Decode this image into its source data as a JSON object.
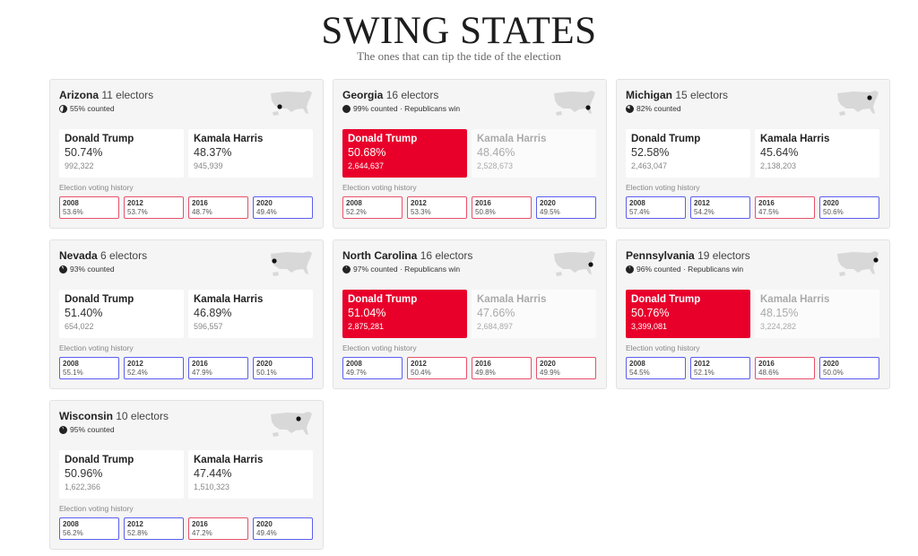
{
  "header": {
    "title": "SWING STATES",
    "subtitle": "The ones that can tip the tide of the election"
  },
  "history_label": "Election voting history",
  "colors": {
    "republican": "#e8002b",
    "republican_border": "#e8506a",
    "democrat_border": "#5a5ef0",
    "card_bg": "#f5f5f5"
  },
  "states": [
    {
      "name": "Arizona",
      "electors": "11 electors",
      "counted": "55% counted",
      "counted_pct": 55,
      "winner": null,
      "candidates": [
        {
          "name": "Donald Trump",
          "pct": "50.74%",
          "votes": "992,322"
        },
        {
          "name": "Kamala Harris",
          "pct": "48.37%",
          "votes": "945,939"
        }
      ],
      "history": [
        {
          "year": "2008",
          "value": "53.6%",
          "party": "R"
        },
        {
          "year": "2012",
          "value": "53.7%",
          "party": "R"
        },
        {
          "year": "2016",
          "value": "48.7%",
          "party": "R"
        },
        {
          "year": "2020",
          "value": "49.4%",
          "party": "D"
        }
      ]
    },
    {
      "name": "Georgia",
      "electors": "16 electors",
      "counted": "99% counted · Republicans win",
      "counted_pct": 99,
      "winner": 0,
      "candidates": [
        {
          "name": "Donald Trump",
          "pct": "50.68%",
          "votes": "2,644,637"
        },
        {
          "name": "Kamala Harris",
          "pct": "48.46%",
          "votes": "2,528,673"
        }
      ],
      "history": [
        {
          "year": "2008",
          "value": "52.2%",
          "party": "R"
        },
        {
          "year": "2012",
          "value": "53.3%",
          "party": "R"
        },
        {
          "year": "2016",
          "value": "50.8%",
          "party": "R"
        },
        {
          "year": "2020",
          "value": "49.5%",
          "party": "D"
        }
      ]
    },
    {
      "name": "Michigan",
      "electors": "15 electors",
      "counted": "82% counted",
      "counted_pct": 82,
      "winner": null,
      "candidates": [
        {
          "name": "Donald Trump",
          "pct": "52.58%",
          "votes": "2,463,047"
        },
        {
          "name": "Kamala Harris",
          "pct": "45.64%",
          "votes": "2,138,203"
        }
      ],
      "history": [
        {
          "year": "2008",
          "value": "57.4%",
          "party": "D"
        },
        {
          "year": "2012",
          "value": "54.2%",
          "party": "D"
        },
        {
          "year": "2016",
          "value": "47.5%",
          "party": "R"
        },
        {
          "year": "2020",
          "value": "50.6%",
          "party": "D"
        }
      ]
    },
    {
      "name": "Nevada",
      "electors": "6 electors",
      "counted": "93% counted",
      "counted_pct": 93,
      "winner": null,
      "candidates": [
        {
          "name": "Donald Trump",
          "pct": "51.40%",
          "votes": "654,022"
        },
        {
          "name": "Kamala Harris",
          "pct": "46.89%",
          "votes": "596,557"
        }
      ],
      "history": [
        {
          "year": "2008",
          "value": "55.1%",
          "party": "D"
        },
        {
          "year": "2012",
          "value": "52.4%",
          "party": "D"
        },
        {
          "year": "2016",
          "value": "47.9%",
          "party": "D"
        },
        {
          "year": "2020",
          "value": "50.1%",
          "party": "D"
        }
      ]
    },
    {
      "name": "North Carolina",
      "electors": "16 electors",
      "counted": "97% counted · Republicans win",
      "counted_pct": 97,
      "winner": 0,
      "candidates": [
        {
          "name": "Donald Trump",
          "pct": "51.04%",
          "votes": "2,875,281"
        },
        {
          "name": "Kamala Harris",
          "pct": "47.66%",
          "votes": "2,684,897"
        }
      ],
      "history": [
        {
          "year": "2008",
          "value": "49.7%",
          "party": "D"
        },
        {
          "year": "2012",
          "value": "50.4%",
          "party": "R"
        },
        {
          "year": "2016",
          "value": "49.8%",
          "party": "R"
        },
        {
          "year": "2020",
          "value": "49.9%",
          "party": "R"
        }
      ]
    },
    {
      "name": "Pennsylvania",
      "electors": "19 electors",
      "counted": "96% counted · Republicans win",
      "counted_pct": 96,
      "winner": 0,
      "candidates": [
        {
          "name": "Donald Trump",
          "pct": "50.76%",
          "votes": "3,399,081"
        },
        {
          "name": "Kamala Harris",
          "pct": "48.15%",
          "votes": "3,224,282"
        }
      ],
      "history": [
        {
          "year": "2008",
          "value": "54.5%",
          "party": "D"
        },
        {
          "year": "2012",
          "value": "52.1%",
          "party": "D"
        },
        {
          "year": "2016",
          "value": "48.6%",
          "party": "R"
        },
        {
          "year": "2020",
          "value": "50.0%",
          "party": "D"
        }
      ]
    },
    {
      "name": "Wisconsin",
      "electors": "10 electors",
      "counted": "95% counted",
      "counted_pct": 95,
      "winner": null,
      "candidates": [
        {
          "name": "Donald Trump",
          "pct": "50.96%",
          "votes": "1,622,366"
        },
        {
          "name": "Kamala Harris",
          "pct": "47.44%",
          "votes": "1,510,323"
        }
      ],
      "history": [
        {
          "year": "2008",
          "value": "56.2%",
          "party": "D"
        },
        {
          "year": "2012",
          "value": "52.8%",
          "party": "D"
        },
        {
          "year": "2016",
          "value": "47.2%",
          "party": "R"
        },
        {
          "year": "2020",
          "value": "49.4%",
          "party": "D"
        }
      ]
    }
  ]
}
